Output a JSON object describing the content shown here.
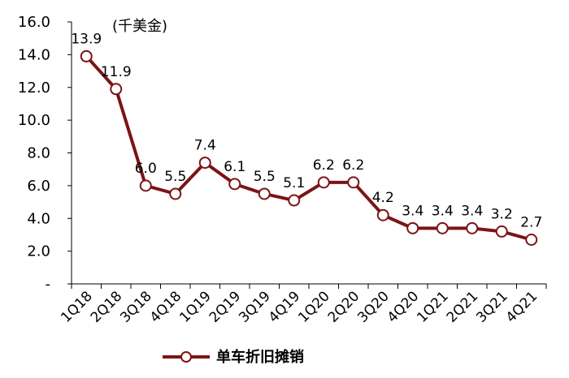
{
  "chart_data": {
    "type": "line",
    "unit_label": "(千美金)",
    "categories": [
      "1Q18",
      "2Q18",
      "3Q18",
      "4Q18",
      "1Q19",
      "2Q19",
      "3Q19",
      "4Q19",
      "1Q20",
      "2Q20",
      "3Q20",
      "4Q20",
      "1Q21",
      "2Q21",
      "3Q21",
      "4Q21"
    ],
    "series": [
      {
        "name": "单车折旧摊销",
        "values": [
          13.9,
          11.9,
          6.0,
          5.5,
          7.4,
          6.1,
          5.5,
          5.1,
          6.2,
          6.2,
          4.2,
          3.4,
          3.4,
          3.4,
          3.2,
          2.7
        ],
        "labels": [
          "13.9",
          "11.9",
          "6.0",
          "5.5",
          "7.4",
          "6.1",
          "5.5",
          "5.1",
          "6.2",
          "6.2",
          "4.2",
          "3.4",
          "3.4",
          "3.4",
          "3.2",
          "2.7"
        ]
      }
    ],
    "ylim": [
      0,
      16
    ],
    "yticks": [
      16,
      14,
      12,
      10,
      8,
      6,
      4,
      2,
      0
    ],
    "ytick_labels": [
      "16.0",
      "14.0",
      "12.0",
      "10.0",
      "8.0",
      "6.0",
      "4.0",
      "2.0",
      "-"
    ],
    "line_color": "#7b1416",
    "marker_fill": "#ffffff",
    "legend_position": "bottom-center",
    "grid": false
  }
}
